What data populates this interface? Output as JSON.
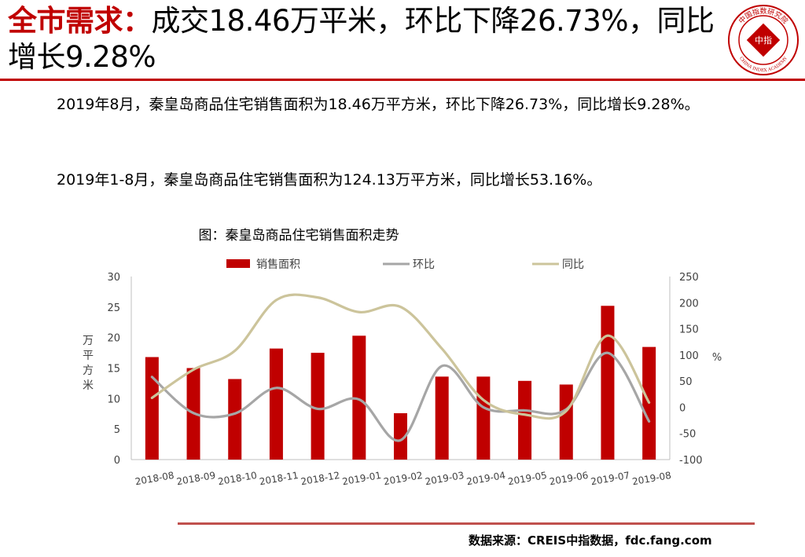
{
  "header": {
    "title_prefix": "全市需求：",
    "title_rest": "成交18.46万平米，环比下降26.73%，同比增长9.28%",
    "logo": {
      "icon": "china-index-academy-seal",
      "text_top": "中国指数研究院",
      "text_bottom": "CHINA INDEX ACADEMY",
      "center_text": "中指",
      "color": "#c00000"
    }
  },
  "body": {
    "paragraph1": "2019年8月，秦皇岛商品住宅销售面积为18.46万平方米，环比下降26.73%，同比增长9.28%。",
    "paragraph2": "2019年1-8月，秦皇岛商品住宅销售面积为124.13万平方米，同比增长53.16%。"
  },
  "chart_data": {
    "type": "bar+line",
    "title": "图：秦皇岛商品住宅销售面积走势",
    "categories": [
      "2018-08",
      "2018-09",
      "2018-10",
      "2018-11",
      "2018-12",
      "2019-01",
      "2019-02",
      "2019-03",
      "2019-04",
      "2019-05",
      "2019-06",
      "2019-07",
      "2019-08"
    ],
    "series": [
      {
        "name": "销售面积",
        "type": "bar",
        "axis": "left",
        "color": "#c00000",
        "values": [
          16.8,
          15.0,
          13.2,
          18.2,
          17.5,
          20.3,
          7.6,
          13.6,
          13.6,
          12.9,
          12.3,
          25.2,
          18.46
        ]
      },
      {
        "name": "环比",
        "type": "line",
        "axis": "right",
        "color": "#a6a6a6",
        "values": [
          58,
          -11,
          -12,
          37,
          -3,
          15,
          -63,
          79,
          0,
          -6,
          -4,
          104,
          -27
        ]
      },
      {
        "name": "同比",
        "type": "line",
        "axis": "right",
        "color": "#ccc49b",
        "values": [
          18,
          72,
          108,
          205,
          210,
          182,
          192,
          112,
          14,
          -14,
          -7,
          137,
          9
        ]
      }
    ],
    "left_axis": {
      "label": "万平方米",
      "ylim": [
        0,
        30
      ],
      "ticks": [
        0,
        5,
        10,
        15,
        20,
        25,
        30
      ]
    },
    "right_axis": {
      "label": "%",
      "ylim": [
        -100,
        250
      ],
      "ticks": [
        -100,
        -50,
        0,
        50,
        100,
        150,
        200,
        250
      ]
    },
    "legend_position": "top",
    "grid": false
  },
  "footer": {
    "source": "数据来源：CREIS中指数据，fdc.fang.com",
    "rule_color": "#c0504d"
  }
}
